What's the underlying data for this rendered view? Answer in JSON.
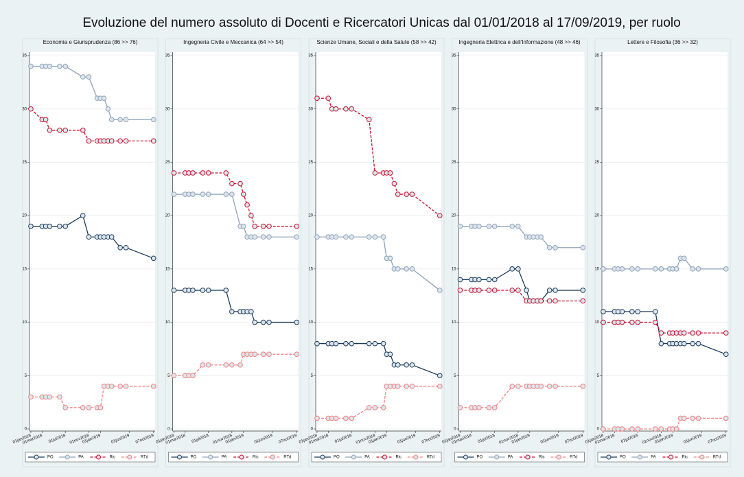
{
  "title": "Evoluzione del numero assoluto di Docenti e Ricercatori Unicas dal 01/01/2018 al 17/09/2019, per ruolo",
  "chart_data": [
    {
      "type": "line",
      "title": "Economia e Giurisprudenza (86 >> 76)",
      "x": [
        "2018-01-01",
        "2018-03-01",
        "2018-03-20",
        "2018-04-10",
        "2018-06-01",
        "2018-07-01",
        "2018-10-01",
        "2018-11-01",
        "2018-12-15",
        "2019-01-01",
        "2019-01-20",
        "2019-02-10",
        "2019-03-01",
        "2019-04-15",
        "2019-05-15",
        "2019-10-07"
      ],
      "series": [
        {
          "name": "PO",
          "color": "#1b3a5a",
          "dash": false,
          "values": [
            19,
            19,
            19,
            19,
            19,
            19,
            20,
            18,
            18,
            18,
            18,
            18,
            18,
            17,
            17,
            16
          ]
        },
        {
          "name": "PA",
          "color": "#8ea3b8",
          "dash": false,
          "values": [
            34,
            34,
            34,
            34,
            34,
            34,
            33,
            33,
            31,
            31,
            31,
            30,
            29,
            29,
            29,
            29
          ]
        },
        {
          "name": "Ric",
          "color": "#c8102e",
          "dash": true,
          "values": [
            30,
            29,
            29,
            28,
            28,
            28,
            28,
            27,
            27,
            27,
            27,
            27,
            27,
            27,
            27,
            27
          ]
        },
        {
          "name": "RTd",
          "color": "#f28080",
          "dash": true,
          "values": [
            3,
            3,
            3,
            3,
            3,
            2,
            2,
            2,
            2,
            2,
            4,
            4,
            4,
            4,
            4,
            4
          ]
        }
      ],
      "xlim": [
        "2017-12-25",
        "2019-10-15"
      ],
      "xticks": [
        {
          "value": "2018-01-01",
          "label": "01jan2018"
        },
        {
          "value": "2018-03-01",
          "label": "01mar2018"
        },
        {
          "value": "2018-07-01",
          "label": "01jul2018"
        },
        {
          "value": "2018-11-01",
          "label": "01nov2018"
        },
        {
          "value": "2019-01-01",
          "label": "01jan2019"
        },
        {
          "value": "2019-06-01",
          "label": "01jun2019"
        },
        {
          "value": "2019-10-07",
          "label": "07oct2019"
        }
      ],
      "ylim": [
        0,
        35
      ],
      "yticks": [
        0,
        5,
        10,
        15,
        20,
        25,
        30,
        35
      ],
      "grid": true,
      "legend": "bottom"
    },
    {
      "type": "line",
      "title": "Ingegneria Civile e Meccanica (64 >> 54)",
      "x": [
        "2018-01-01",
        "2018-03-01",
        "2018-03-20",
        "2018-04-10",
        "2018-06-01",
        "2018-07-01",
        "2018-10-01",
        "2018-11-01",
        "2018-12-15",
        "2019-01-01",
        "2019-01-20",
        "2019-02-10",
        "2019-03-01",
        "2019-04-15",
        "2019-05-15",
        "2019-10-07"
      ],
      "series": [
        {
          "name": "PO",
          "color": "#1b3a5a",
          "dash": false,
          "values": [
            13,
            13,
            13,
            13,
            13,
            13,
            13,
            11,
            11,
            11,
            11,
            11,
            10,
            10,
            10,
            10
          ]
        },
        {
          "name": "PA",
          "color": "#8ea3b8",
          "dash": false,
          "values": [
            22,
            22,
            22,
            22,
            22,
            22,
            22,
            22,
            19,
            19,
            18,
            18,
            18,
            18,
            18,
            18
          ]
        },
        {
          "name": "Ric",
          "color": "#c8102e",
          "dash": true,
          "values": [
            24,
            24,
            24,
            24,
            24,
            24,
            24,
            23,
            23,
            22,
            21,
            20,
            19,
            19,
            19,
            19
          ]
        },
        {
          "name": "RTd",
          "color": "#f28080",
          "dash": true,
          "values": [
            5,
            5,
            5,
            5,
            6,
            6,
            6,
            6,
            6,
            7,
            7,
            7,
            7,
            7,
            7,
            7
          ]
        }
      ],
      "xlim": [
        "2017-12-25",
        "2019-10-15"
      ],
      "xticks": [
        {
          "value": "2018-01-01",
          "label": "01jan2018"
        },
        {
          "value": "2018-03-01",
          "label": "01mar2018"
        },
        {
          "value": "2018-07-01",
          "label": "01jul2018"
        },
        {
          "value": "2018-11-01",
          "label": "01nov2018"
        },
        {
          "value": "2019-01-01",
          "label": "01jan2019"
        },
        {
          "value": "2019-06-01",
          "label": "01jun2019"
        },
        {
          "value": "2019-10-07",
          "label": "07oct2019"
        }
      ],
      "ylim": [
        0,
        35
      ],
      "yticks": [
        0,
        5,
        10,
        15,
        20,
        25,
        30,
        35
      ],
      "grid": true,
      "legend": "bottom"
    },
    {
      "type": "line",
      "title": "Scienze Umane, Sociali e della Salute (58 >> 42)",
      "x": [
        "2018-01-01",
        "2018-03-01",
        "2018-03-20",
        "2018-04-10",
        "2018-06-01",
        "2018-07-01",
        "2018-10-01",
        "2018-11-01",
        "2018-12-15",
        "2019-01-01",
        "2019-01-20",
        "2019-02-10",
        "2019-03-01",
        "2019-04-15",
        "2019-05-15",
        "2019-10-07"
      ],
      "series": [
        {
          "name": "PO",
          "color": "#1b3a5a",
          "dash": false,
          "values": [
            8,
            8,
            8,
            8,
            8,
            8,
            8,
            8,
            8,
            7,
            7,
            6,
            6,
            6,
            6,
            5
          ]
        },
        {
          "name": "PA",
          "color": "#8ea3b8",
          "dash": false,
          "values": [
            18,
            18,
            18,
            18,
            18,
            18,
            18,
            18,
            18,
            16,
            16,
            15,
            15,
            15,
            15,
            13
          ]
        },
        {
          "name": "Ric",
          "color": "#c8102e",
          "dash": true,
          "values": [
            31,
            31,
            30,
            30,
            30,
            30,
            29,
            24,
            24,
            24,
            24,
            23,
            22,
            22,
            22,
            20
          ]
        },
        {
          "name": "RTd",
          "color": "#f28080",
          "dash": true,
          "values": [
            1,
            1,
            1,
            1,
            1,
            1,
            2,
            2,
            2,
            4,
            4,
            4,
            4,
            4,
            4,
            4
          ]
        }
      ],
      "xlim": [
        "2017-12-25",
        "2019-10-15"
      ],
      "xticks": [
        {
          "value": "2018-01-01",
          "label": "01jan2018"
        },
        {
          "value": "2018-03-01",
          "label": "01mar2018"
        },
        {
          "value": "2018-07-01",
          "label": "01jul2018"
        },
        {
          "value": "2018-11-01",
          "label": "01nov2018"
        },
        {
          "value": "2019-01-01",
          "label": "01jan2019"
        },
        {
          "value": "2019-06-01",
          "label": "01jun2019"
        },
        {
          "value": "2019-10-07",
          "label": "07oct2019"
        }
      ],
      "ylim": [
        0,
        35
      ],
      "yticks": [
        0,
        5,
        10,
        15,
        20,
        25,
        30,
        35
      ],
      "grid": true,
      "legend": "bottom"
    },
    {
      "type": "line",
      "title": "Ingegneria Elettrica e dell'Informazione (48 >> 46)",
      "x": [
        "2018-01-01",
        "2018-03-01",
        "2018-03-20",
        "2018-04-10",
        "2018-06-01",
        "2018-07-01",
        "2018-10-01",
        "2018-11-01",
        "2018-12-15",
        "2019-01-01",
        "2019-01-20",
        "2019-02-10",
        "2019-03-01",
        "2019-04-15",
        "2019-05-15",
        "2019-10-07"
      ],
      "series": [
        {
          "name": "PO",
          "color": "#1b3a5a",
          "dash": false,
          "values": [
            14,
            14,
            14,
            14,
            14,
            14,
            15,
            15,
            13,
            12,
            12,
            12,
            12,
            13,
            13,
            13
          ]
        },
        {
          "name": "PA",
          "color": "#8ea3b8",
          "dash": false,
          "values": [
            19,
            19,
            19,
            19,
            19,
            19,
            19,
            19,
            18,
            18,
            18,
            18,
            18,
            17,
            17,
            17
          ]
        },
        {
          "name": "Ric",
          "color": "#c8102e",
          "dash": true,
          "values": [
            13,
            13,
            13,
            13,
            13,
            13,
            13,
            13,
            12,
            12,
            12,
            12,
            12,
            12,
            12,
            12
          ]
        },
        {
          "name": "RTd",
          "color": "#f28080",
          "dash": true,
          "values": [
            2,
            2,
            2,
            2,
            2,
            2,
            4,
            4,
            4,
            4,
            4,
            4,
            4,
            4,
            4,
            4
          ]
        }
      ],
      "xlim": [
        "2017-12-25",
        "2019-10-15"
      ],
      "xticks": [
        {
          "value": "2018-01-01",
          "label": "01jan2018"
        },
        {
          "value": "2018-03-01",
          "label": "01mar2018"
        },
        {
          "value": "2018-07-01",
          "label": "01jul2018"
        },
        {
          "value": "2018-11-01",
          "label": "01nov2018"
        },
        {
          "value": "2019-01-01",
          "label": "01jan2019"
        },
        {
          "value": "2019-06-01",
          "label": "01jun2019"
        },
        {
          "value": "2019-10-07",
          "label": "07oct2019"
        }
      ],
      "ylim": [
        0,
        35
      ],
      "yticks": [
        0,
        5,
        10,
        15,
        20,
        25,
        30,
        35
      ],
      "grid": true,
      "legend": "bottom"
    },
    {
      "type": "line",
      "title": "Lettere e Filosofia (36 >> 32)",
      "x": [
        "2018-01-01",
        "2018-03-01",
        "2018-03-20",
        "2018-04-10",
        "2018-06-01",
        "2018-07-01",
        "2018-10-01",
        "2018-11-01",
        "2018-12-15",
        "2019-01-01",
        "2019-01-20",
        "2019-02-10",
        "2019-03-01",
        "2019-04-15",
        "2019-05-15",
        "2019-10-07"
      ],
      "series": [
        {
          "name": "PO",
          "color": "#1b3a5a",
          "dash": false,
          "values": [
            11,
            11,
            11,
            11,
            11,
            11,
            11,
            8,
            8,
            8,
            8,
            8,
            8,
            8,
            8,
            7
          ]
        },
        {
          "name": "PA",
          "color": "#8ea3b8",
          "dash": false,
          "values": [
            15,
            15,
            15,
            15,
            15,
            15,
            15,
            15,
            15,
            15,
            15,
            16,
            16,
            15,
            15,
            15
          ]
        },
        {
          "name": "Ric",
          "color": "#c8102e",
          "dash": true,
          "values": [
            10,
            10,
            10,
            10,
            10,
            10,
            10,
            9,
            9,
            9,
            9,
            9,
            9,
            9,
            9,
            9
          ]
        },
        {
          "name": "RTd",
          "color": "#f28080",
          "dash": true,
          "values": [
            0,
            0,
            0,
            0,
            0,
            0,
            0,
            0,
            0,
            0,
            0,
            1,
            1,
            1,
            1,
            1
          ]
        }
      ],
      "xlim": [
        "2017-12-25",
        "2019-10-15"
      ],
      "xticks": [
        {
          "value": "2018-01-01",
          "label": "01jan2018"
        },
        {
          "value": "2018-03-01",
          "label": "01mar2018"
        },
        {
          "value": "2018-07-01",
          "label": "01jul2018"
        },
        {
          "value": "2018-11-01",
          "label": "01nov2018"
        },
        {
          "value": "2019-01-01",
          "label": "01jan2019"
        },
        {
          "value": "2019-06-01",
          "label": "01jun2019"
        },
        {
          "value": "2019-10-07",
          "label": "07oct2019"
        }
      ],
      "ylim": [
        0,
        35
      ],
      "yticks": [
        0,
        5,
        10,
        15,
        20,
        25,
        30,
        35
      ],
      "grid": true,
      "legend": "bottom"
    }
  ]
}
